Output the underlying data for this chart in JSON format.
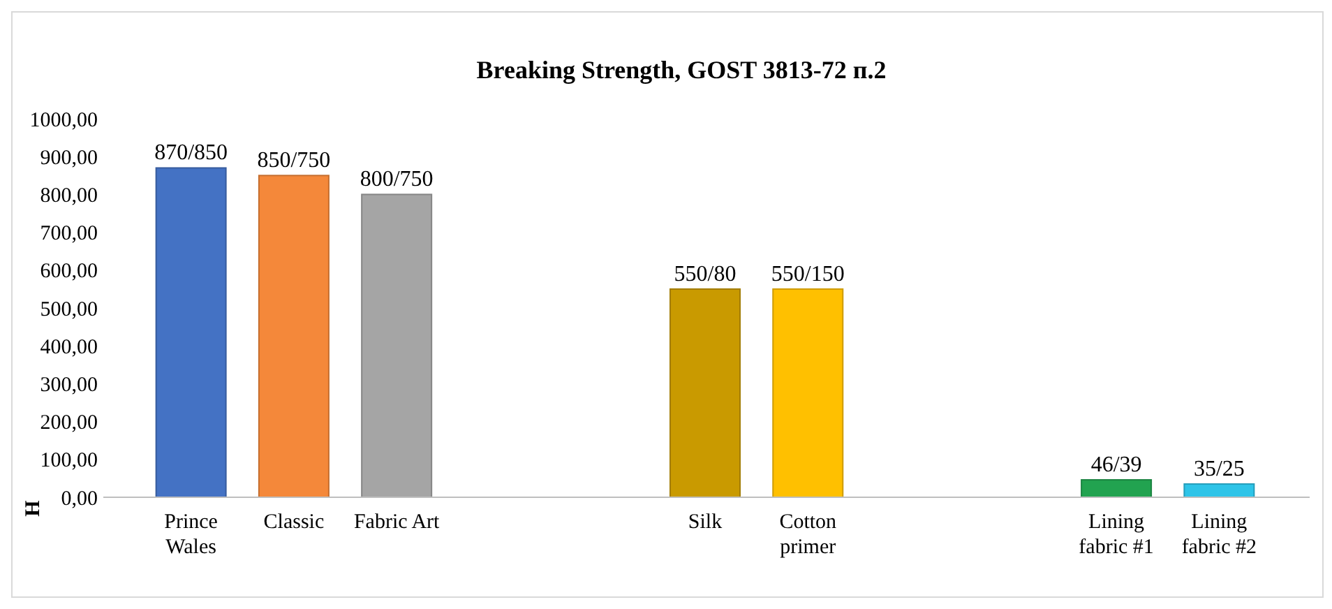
{
  "chart_data": {
    "type": "bar",
    "title": "Breaking Strength, GOST 3813-72 п.2",
    "ylabel": "H",
    "categories": [
      "Prince Wales",
      "Classic",
      "Fabric Art",
      null,
      null,
      "Silk",
      "Cotton primer",
      null,
      null,
      "Lining fabric #1",
      "Lining fabric #2"
    ],
    "values": [
      870,
      850,
      800,
      null,
      null,
      550,
      550,
      null,
      null,
      46,
      35
    ],
    "value_labels": [
      "870/850",
      "850/750",
      "800/750",
      null,
      null,
      "550/80",
      "550/150",
      null,
      null,
      "46/39",
      "35/25"
    ],
    "colors": [
      "#4472c4",
      "#f4883a",
      "#a5a5a5",
      null,
      null,
      "#c99a00",
      "#ffc000",
      null,
      null,
      "#22a350",
      "#2ec4e8"
    ],
    "ylim": [
      0,
      1000
    ],
    "yticks": [
      {
        "value": 0,
        "label": "0,00"
      },
      {
        "value": 100,
        "label": "100,00"
      },
      {
        "value": 200,
        "label": "200,00"
      },
      {
        "value": 300,
        "label": "300,00"
      },
      {
        "value": 400,
        "label": "400,00"
      },
      {
        "value": 500,
        "label": "500,00"
      },
      {
        "value": 600,
        "label": "600,00"
      },
      {
        "value": 700,
        "label": "700,00"
      },
      {
        "value": 800,
        "label": "800,00"
      },
      {
        "value": 900,
        "label": "900,00"
      },
      {
        "value": 1000,
        "label": "1000,00"
      }
    ],
    "grid": false
  }
}
